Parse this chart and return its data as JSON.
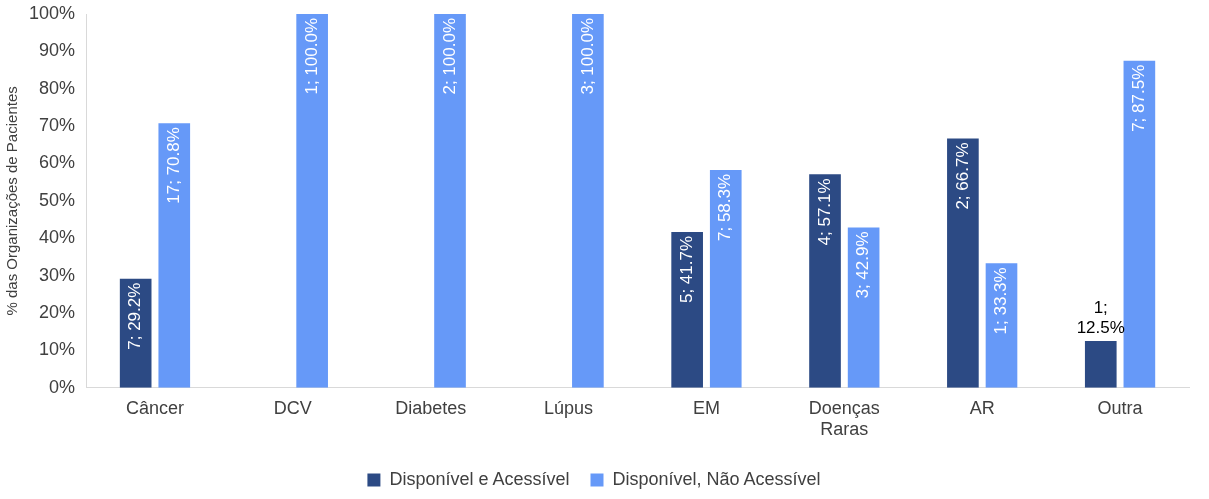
{
  "chart_data": {
    "type": "bar",
    "ylabel": "% das Organizações de Pacientes",
    "categories": [
      "Câncer",
      "DCV",
      "Diabetes",
      "Lúpus",
      "EM",
      "Doenças Raras",
      "AR",
      "Outra"
    ],
    "series": [
      {
        "name": "Disponível e Acessível",
        "color": "#2c4a84",
        "values": [
          29.2,
          null,
          null,
          null,
          41.7,
          57.1,
          66.7,
          12.5
        ],
        "value_labels": [
          "7; 29.2%",
          null,
          null,
          null,
          "5; 41.7%",
          "4; 57.1%",
          "2; 66.7%",
          "1; 12.5%"
        ]
      },
      {
        "name": "Disponível, Não Acessível",
        "color": "#6699f8",
        "values": [
          70.8,
          100,
          100,
          100,
          58.3,
          42.9,
          33.3,
          87.5
        ],
        "value_labels": [
          "17; 70.8%",
          "1; 100.0%",
          "2; 100.0%",
          "3; 100.0%",
          "7; 58.3%",
          "3; 42.9%",
          "1; 33.3%",
          "7; 87.5%"
        ]
      }
    ],
    "ylim": [
      0,
      100
    ],
    "yticks": [
      {
        "value": 0,
        "label": "0%"
      },
      {
        "value": 10,
        "label": "10%"
      },
      {
        "value": 20,
        "label": "20%"
      },
      {
        "value": 30,
        "label": "30%"
      },
      {
        "value": 40,
        "label": "40%"
      },
      {
        "value": 50,
        "label": "50%"
      },
      {
        "value": 60,
        "label": "60%"
      },
      {
        "value": 70,
        "label": "70%"
      },
      {
        "value": 80,
        "label": "80%"
      },
      {
        "value": 90,
        "label": "90%"
      },
      {
        "value": 100,
        "label": "100%"
      }
    ],
    "grid": false,
    "legend": "bottom"
  }
}
